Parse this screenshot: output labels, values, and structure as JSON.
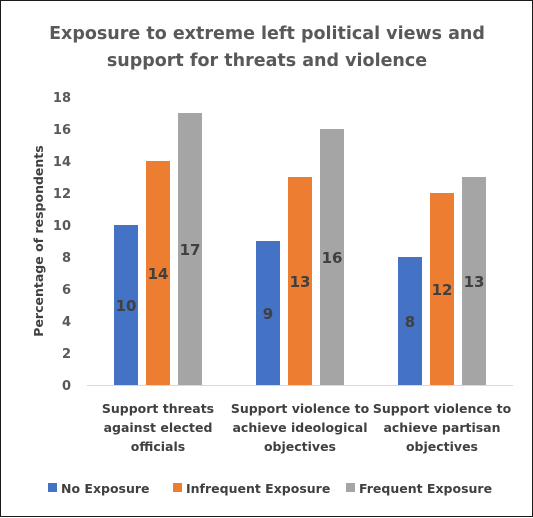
{
  "chart_data": {
    "type": "bar",
    "title": "Exposure to extreme left political views and support for threats and violence",
    "title_lines": [
      "Exposure to extreme left political views and",
      "support for threats and violence"
    ],
    "ylabel": "Percentage of respondents",
    "xlabel": "",
    "ylim": [
      0,
      18
    ],
    "y_ticks": [
      0,
      2,
      4,
      6,
      8,
      10,
      12,
      14,
      16,
      18
    ],
    "grid": false,
    "legend_position": "bottom",
    "categories": [
      [
        "Support threats",
        "against elected",
        "officials"
      ],
      [
        "Support violence to",
        "achieve ideological",
        "objectives"
      ],
      [
        "Support violence to",
        "achieve partisan",
        "objectives"
      ]
    ],
    "series": [
      {
        "name": "No Exposure",
        "color": "#4472C4",
        "values": [
          10,
          9,
          8
        ]
      },
      {
        "name": "Infrequent Exposure",
        "color": "#ED7D31",
        "values": [
          14,
          13,
          12
        ]
      },
      {
        "name": "Frequent Exposure",
        "color": "#A5A5A5",
        "values": [
          17,
          16,
          13
        ]
      }
    ]
  }
}
